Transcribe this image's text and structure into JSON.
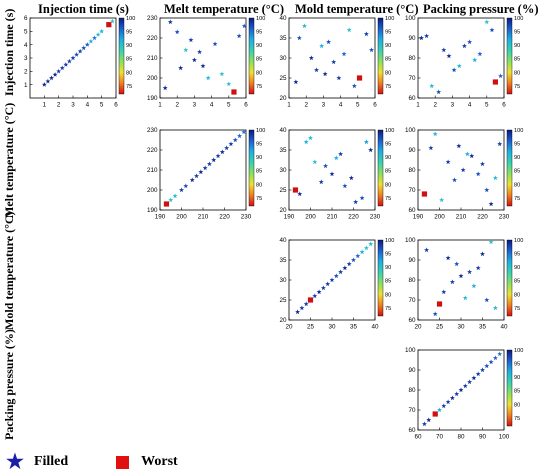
{
  "column_titles": [
    "Injection time (s)",
    "Melt temperature (°C)",
    "Mold temperature (°C)",
    "Packing pressure (%)"
  ],
  "row_titles": [
    "Injection time (s)",
    "Melt temperature (°C)",
    "Mold temperature (°C)",
    "Packing pressure (%)"
  ],
  "legend": {
    "filled_label": "Filled",
    "filled_icon": "star-icon",
    "filled_color": "#1a1ea8",
    "worst_label": "Worst",
    "worst_icon": "square-icon",
    "worst_color": "#e01010"
  },
  "colorbar": {
    "ticks": [
      100,
      95,
      90,
      85,
      80,
      75
    ],
    "range": [
      72,
      100
    ],
    "colors": [
      "#0a1a80",
      "#1f5fd0",
      "#1fb0e0",
      "#3ad0b0",
      "#8ae060",
      "#f0e030",
      "#f08020",
      "#d01010"
    ]
  },
  "chart_data": [
    {
      "type": "scatter",
      "row": 0,
      "col": 0,
      "xlim": [
        0,
        6
      ],
      "ylim": [
        0,
        6
      ],
      "xticks": [
        1,
        2,
        3,
        4,
        5,
        6
      ],
      "yticks": [
        1,
        2,
        3,
        4,
        5,
        6
      ],
      "points": [
        [
          1.0,
          1.0,
          99
        ],
        [
          1.25,
          1.25,
          99
        ],
        [
          1.5,
          1.5,
          99
        ],
        [
          1.75,
          1.75,
          99
        ],
        [
          2.0,
          2.0,
          98
        ],
        [
          2.25,
          2.25,
          98
        ],
        [
          2.5,
          2.5,
          98
        ],
        [
          2.75,
          2.75,
          98
        ],
        [
          3.0,
          3.0,
          98
        ],
        [
          3.25,
          3.25,
          97
        ],
        [
          3.5,
          3.5,
          98
        ],
        [
          3.75,
          3.75,
          97
        ],
        [
          4.0,
          4.0,
          96
        ],
        [
          4.25,
          4.25,
          92
        ],
        [
          4.5,
          4.5,
          95
        ],
        [
          4.75,
          4.75,
          90
        ],
        [
          5.0,
          5.0,
          92
        ],
        [
          5.5,
          5.5,
          72
        ],
        [
          5.75,
          5.75,
          90
        ]
      ]
    },
    {
      "type": "scatter",
      "row": 0,
      "col": 1,
      "xlim": [
        1,
        6
      ],
      "ylim": [
        190,
        230
      ],
      "xticks": [
        1,
        2,
        3,
        4,
        5,
        6
      ],
      "yticks": [
        190,
        200,
        210,
        220,
        230
      ],
      "points": [
        [
          1.3,
          195,
          99
        ],
        [
          1.6,
          228,
          98
        ],
        [
          2.0,
          223,
          97
        ],
        [
          2.2,
          205,
          99
        ],
        [
          2.5,
          214,
          90
        ],
        [
          2.8,
          219,
          98
        ],
        [
          3.0,
          209,
          99
        ],
        [
          3.3,
          213,
          98
        ],
        [
          3.5,
          206,
          99
        ],
        [
          3.8,
          200,
          91
        ],
        [
          4.2,
          217,
          97
        ],
        [
          4.6,
          202,
          90
        ],
        [
          5.0,
          197,
          90
        ],
        [
          5.3,
          193,
          72
        ],
        [
          5.6,
          221,
          97
        ],
        [
          5.9,
          226,
          96
        ]
      ]
    },
    {
      "type": "scatter",
      "row": 0,
      "col": 2,
      "xlim": [
        1,
        6
      ],
      "ylim": [
        20,
        40
      ],
      "xticks": [
        1,
        2,
        3,
        4,
        5,
        6
      ],
      "yticks": [
        20,
        25,
        30,
        35,
        40
      ],
      "points": [
        [
          1.4,
          24,
          99
        ],
        [
          1.6,
          35,
          97
        ],
        [
          1.9,
          38,
          91
        ],
        [
          2.3,
          30,
          99
        ],
        [
          2.6,
          27,
          98
        ],
        [
          2.9,
          33,
          92
        ],
        [
          3.1,
          26,
          99
        ],
        [
          3.3,
          34,
          97
        ],
        [
          3.6,
          29,
          98
        ],
        [
          3.9,
          25,
          98
        ],
        [
          4.2,
          31,
          96
        ],
        [
          4.5,
          37,
          90
        ],
        [
          4.8,
          23,
          97
        ],
        [
          5.1,
          25,
          72
        ],
        [
          5.5,
          36,
          98
        ],
        [
          5.8,
          32,
          97
        ]
      ]
    },
    {
      "type": "scatter",
      "row": 0,
      "col": 3,
      "xlim": [
        1,
        6
      ],
      "ylim": [
        60,
        100
      ],
      "xticks": [
        1,
        2,
        3,
        4,
        5,
        6
      ],
      "yticks": [
        60,
        70,
        80,
        90,
        100
      ],
      "points": [
        [
          1.2,
          90,
          99
        ],
        [
          1.5,
          91,
          98
        ],
        [
          1.8,
          66,
          91
        ],
        [
          2.2,
          63,
          97
        ],
        [
          2.5,
          84,
          98
        ],
        [
          2.8,
          81,
          99
        ],
        [
          3.1,
          74,
          97
        ],
        [
          3.4,
          76,
          91
        ],
        [
          3.7,
          86,
          98
        ],
        [
          4.0,
          88,
          97
        ],
        [
          4.3,
          79,
          92
        ],
        [
          4.6,
          82,
          96
        ],
        [
          5.0,
          98,
          90
        ],
        [
          5.3,
          94,
          97
        ],
        [
          5.5,
          68,
          72
        ],
        [
          5.8,
          71,
          96
        ]
      ]
    },
    {
      "type": "scatter",
      "row": 1,
      "col": 1,
      "xlim": [
        190,
        230
      ],
      "ylim": [
        190,
        230
      ],
      "xticks": [
        190,
        200,
        210,
        220,
        230
      ],
      "yticks": [
        190,
        200,
        210,
        220,
        230
      ],
      "points": [
        [
          193,
          193,
          72
        ],
        [
          195,
          195,
          90
        ],
        [
          197,
          197,
          91
        ],
        [
          200,
          200,
          98
        ],
        [
          202,
          202,
          97
        ],
        [
          205,
          205,
          99
        ],
        [
          207,
          207,
          98
        ],
        [
          209,
          209,
          99
        ],
        [
          211,
          211,
          98
        ],
        [
          213,
          213,
          98
        ],
        [
          215,
          215,
          99
        ],
        [
          217,
          217,
          98
        ],
        [
          219,
          219,
          99
        ],
        [
          221,
          221,
          98
        ],
        [
          223,
          223,
          98
        ],
        [
          225,
          225,
          97
        ],
        [
          227,
          227,
          96
        ],
        [
          229,
          229,
          95
        ]
      ]
    },
    {
      "type": "scatter",
      "row": 1,
      "col": 2,
      "xlim": [
        190,
        230
      ],
      "ylim": [
        20,
        40
      ],
      "xticks": [
        190,
        200,
        210,
        220,
        230
      ],
      "yticks": [
        20,
        25,
        30,
        35,
        40
      ],
      "points": [
        [
          193,
          25,
          72
        ],
        [
          195,
          24,
          99
        ],
        [
          198,
          37,
          92
        ],
        [
          200,
          38,
          91
        ],
        [
          202,
          32,
          90
        ],
        [
          205,
          27,
          98
        ],
        [
          207,
          31,
          97
        ],
        [
          210,
          29,
          99
        ],
        [
          212,
          33,
          92
        ],
        [
          214,
          34,
          98
        ],
        [
          216,
          26,
          97
        ],
        [
          219,
          28,
          99
        ],
        [
          221,
          22,
          98
        ],
        [
          224,
          23,
          97
        ],
        [
          226,
          37,
          93
        ],
        [
          228,
          35,
          99
        ]
      ]
    },
    {
      "type": "scatter",
      "row": 1,
      "col": 3,
      "xlim": [
        190,
        230
      ],
      "ylim": [
        60,
        100
      ],
      "xticks": [
        190,
        200,
        210,
        220,
        230
      ],
      "yticks": [
        60,
        70,
        80,
        90,
        100
      ],
      "points": [
        [
          193,
          68,
          72
        ],
        [
          196,
          91,
          98
        ],
        [
          198,
          98,
          91
        ],
        [
          201,
          65,
          90
        ],
        [
          204,
          84,
          98
        ],
        [
          207,
          75,
          97
        ],
        [
          209,
          92,
          99
        ],
        [
          211,
          80,
          98
        ],
        [
          213,
          88,
          92
        ],
        [
          215,
          87,
          99
        ],
        [
          218,
          78,
          97
        ],
        [
          220,
          83,
          98
        ],
        [
          222,
          70,
          97
        ],
        [
          224,
          63,
          99
        ],
        [
          226,
          76,
          91
        ],
        [
          228,
          93,
          98
        ]
      ]
    },
    {
      "type": "scatter",
      "row": 2,
      "col": 2,
      "xlim": [
        20,
        40
      ],
      "ylim": [
        20,
        40
      ],
      "xticks": [
        20,
        25,
        30,
        35,
        40
      ],
      "yticks": [
        20,
        25,
        30,
        35,
        40
      ],
      "points": [
        [
          22,
          22,
          99
        ],
        [
          23,
          23,
          98
        ],
        [
          24,
          24,
          98
        ],
        [
          25,
          25,
          72
        ],
        [
          26,
          26,
          98
        ],
        [
          27,
          27,
          99
        ],
        [
          28,
          28,
          98
        ],
        [
          29,
          29,
          98
        ],
        [
          30,
          30,
          98
        ],
        [
          31,
          31,
          97
        ],
        [
          32,
          32,
          98
        ],
        [
          33,
          33,
          99
        ],
        [
          34,
          34,
          98
        ],
        [
          35,
          35,
          97
        ],
        [
          36,
          36,
          96
        ],
        [
          37,
          37,
          92
        ],
        [
          38,
          38,
          90
        ],
        [
          39,
          39,
          91
        ]
      ]
    },
    {
      "type": "scatter",
      "row": 2,
      "col": 3,
      "xlim": [
        20,
        40
      ],
      "ylim": [
        60,
        100
      ],
      "xticks": [
        20,
        25,
        30,
        35,
        40
      ],
      "yticks": [
        60,
        70,
        80,
        90,
        100
      ],
      "points": [
        [
          22,
          95,
          98
        ],
        [
          24,
          63,
          97
        ],
        [
          25,
          68,
          72
        ],
        [
          26,
          74,
          98
        ],
        [
          27,
          91,
          99
        ],
        [
          28,
          79,
          98
        ],
        [
          29,
          88,
          97
        ],
        [
          30,
          82,
          99
        ],
        [
          31,
          71,
          91
        ],
        [
          32,
          84,
          98
        ],
        [
          33,
          77,
          92
        ],
        [
          34,
          86,
          98
        ],
        [
          35,
          93,
          99
        ],
        [
          36,
          70,
          97
        ],
        [
          37,
          99,
          90
        ],
        [
          38,
          66,
          91
        ]
      ]
    },
    {
      "type": "scatter",
      "row": 3,
      "col": 3,
      "xlim": [
        60,
        100
      ],
      "ylim": [
        60,
        100
      ],
      "xticks": [
        60,
        70,
        80,
        90,
        100
      ],
      "yticks": [
        60,
        70,
        80,
        90,
        100
      ],
      "points": [
        [
          63,
          63,
          98
        ],
        [
          65,
          65,
          99
        ],
        [
          68,
          68,
          72
        ],
        [
          70,
          70,
          92
        ],
        [
          72,
          72,
          98
        ],
        [
          74,
          74,
          98
        ],
        [
          76,
          76,
          99
        ],
        [
          78,
          78,
          98
        ],
        [
          80,
          80,
          99
        ],
        [
          82,
          82,
          98
        ],
        [
          84,
          84,
          98
        ],
        [
          86,
          86,
          99
        ],
        [
          88,
          88,
          98
        ],
        [
          90,
          90,
          98
        ],
        [
          92,
          92,
          97
        ],
        [
          94,
          94,
          97
        ],
        [
          96,
          96,
          96
        ],
        [
          98,
          98,
          95
        ]
      ]
    }
  ]
}
